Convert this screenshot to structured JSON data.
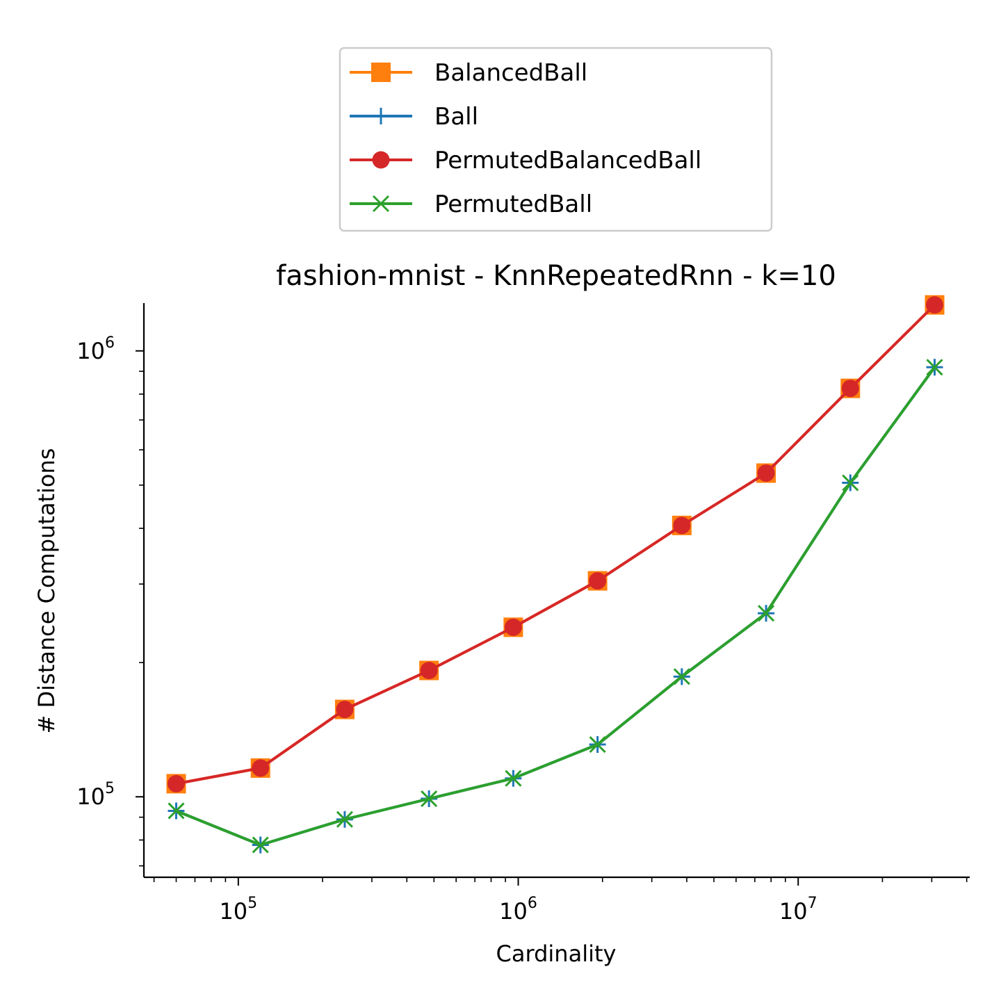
{
  "chart_data": {
    "type": "line",
    "title": "fashion-mnist - KnnRepeatedRnn - k=10",
    "xlabel": "Cardinality",
    "ylabel": "# Distance Computations",
    "xscale": "log",
    "yscale": "log",
    "xlim": [
      46000,
      41000000
    ],
    "ylim": [
      66000,
      1280000
    ],
    "x_ticks": [
      {
        "base": "10",
        "exp": "5",
        "value": 100000
      },
      {
        "base": "10",
        "exp": "6",
        "value": 1000000
      },
      {
        "base": "10",
        "exp": "7",
        "value": 10000000
      }
    ],
    "y_ticks": [
      {
        "base": "10",
        "exp": "5",
        "value": 100000
      },
      {
        "base": "10",
        "exp": "6",
        "value": 1000000
      }
    ],
    "x": [
      60000,
      120000,
      240000,
      480000,
      960000,
      1920000,
      3840000,
      7680000,
      15360000,
      30720000
    ],
    "series": [
      {
        "name": "BalancedBall",
        "color": "#ff7f0e",
        "marker": "square",
        "values": [
          107000,
          116000,
          157000,
          192000,
          240000,
          305000,
          406000,
          532000,
          824000,
          1268000
        ]
      },
      {
        "name": "Ball",
        "color": "#1f77b4",
        "marker": "plus",
        "values": [
          93000,
          78000,
          89000,
          99000,
          110000,
          131000,
          186000,
          258000,
          506000,
          919000
        ]
      },
      {
        "name": "PermutedBalancedBall",
        "color": "#d62728",
        "marker": "circle",
        "values": [
          107000,
          116000,
          157000,
          192000,
          240000,
          305000,
          406000,
          532000,
          824000,
          1268000
        ]
      },
      {
        "name": "PermutedBall",
        "color": "#2ca02c",
        "marker": "x",
        "values": [
          93000,
          78000,
          89000,
          99000,
          110000,
          131000,
          186000,
          258000,
          506000,
          919000
        ]
      }
    ],
    "grid": false,
    "legend": "top-center, above plot"
  }
}
